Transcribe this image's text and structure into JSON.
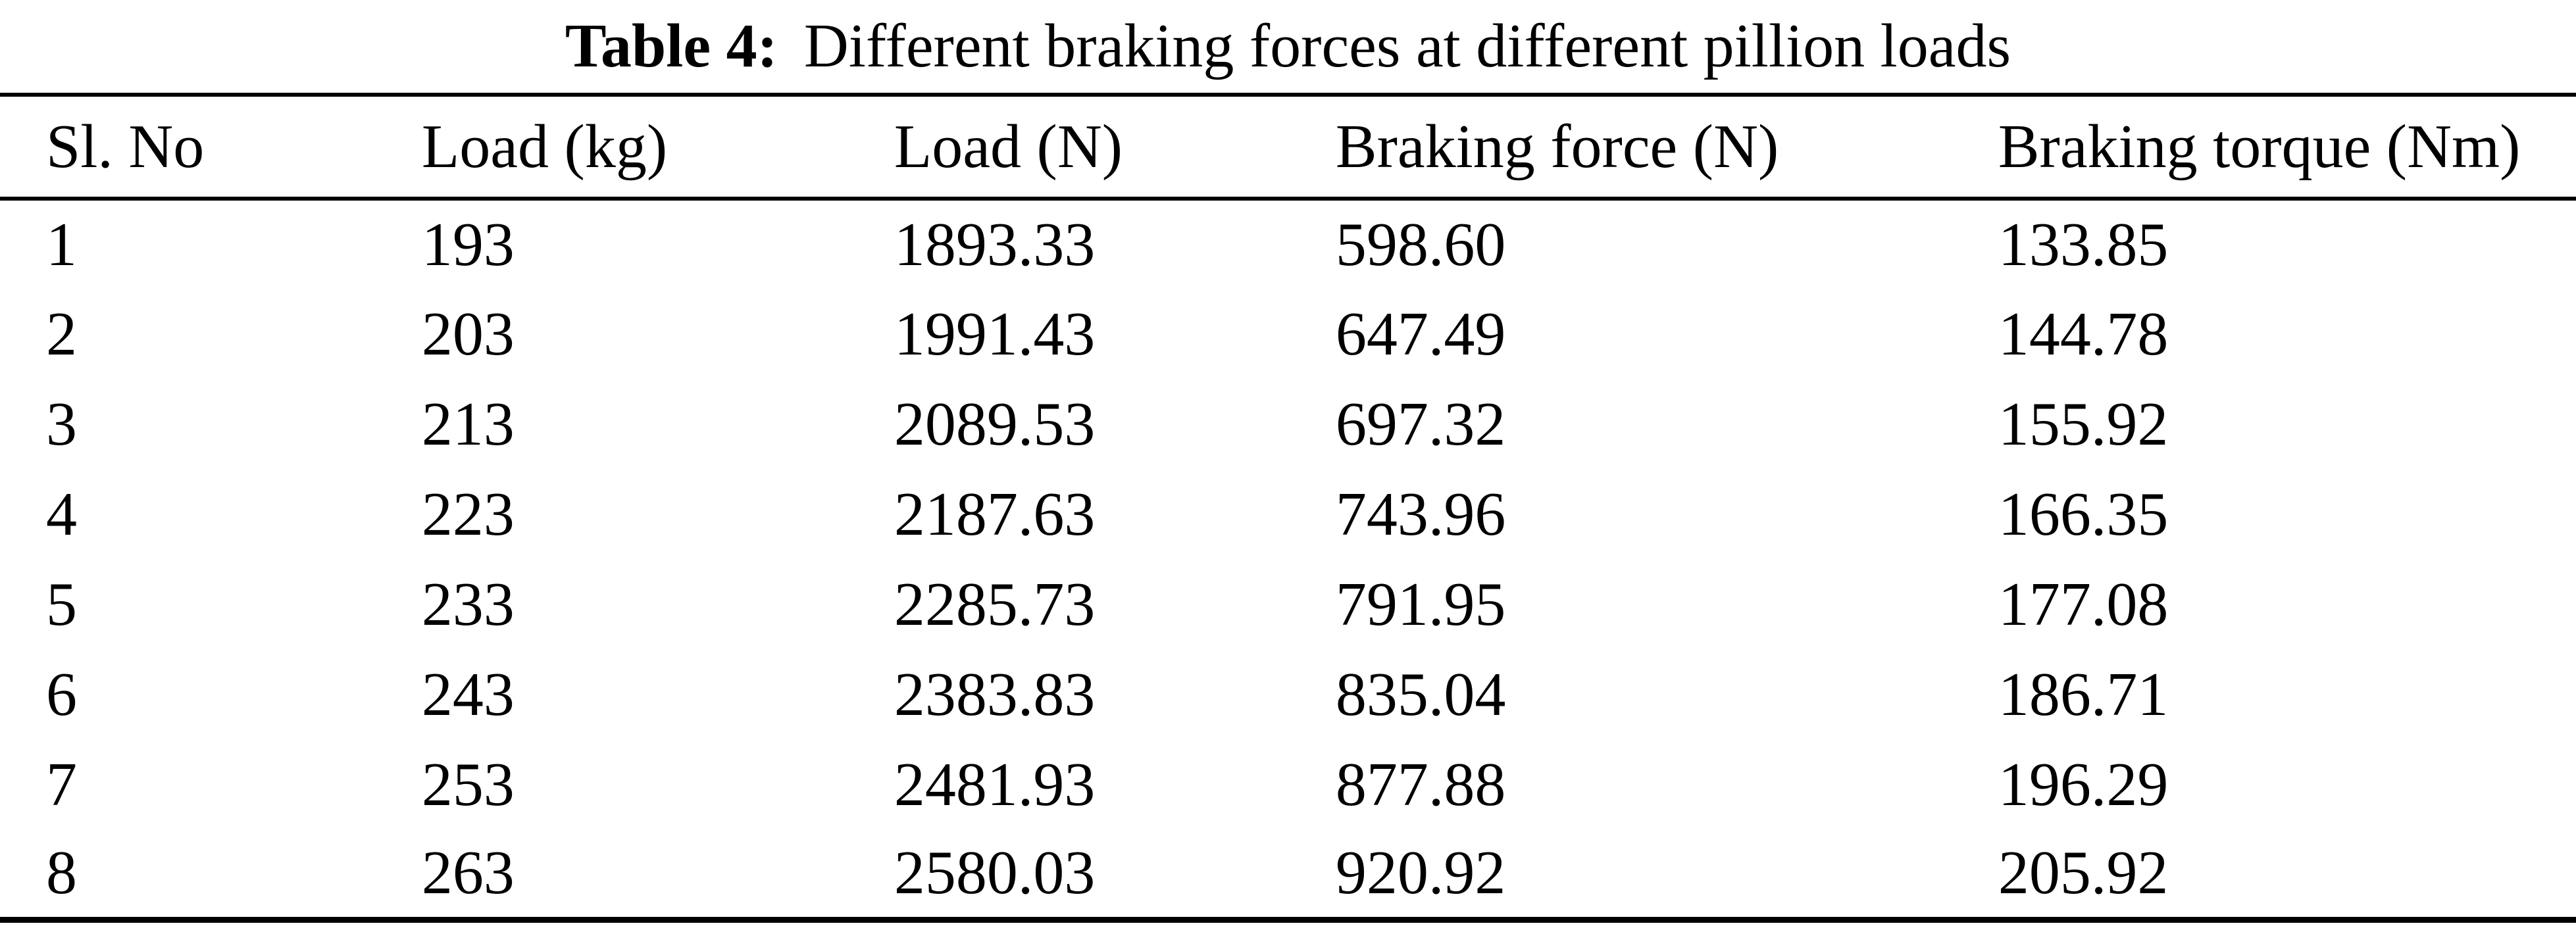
{
  "page": {
    "background_color": "#ffffff",
    "text_color": "#000000",
    "rule_color": "#000000"
  },
  "caption": {
    "label": "Table 4:",
    "text": "Different braking forces at different pillion loads"
  },
  "chart_data": {
    "type": "table",
    "title": "Table 4: Different braking forces at different pillion loads",
    "columns": [
      "Sl. No",
      "Load (kg)",
      "Load (N)",
      "Braking force (N)",
      "Braking torque (Nm)"
    ],
    "rows": [
      [
        "1",
        "193",
        "1893.33",
        "598.60",
        "133.85"
      ],
      [
        "2",
        "203",
        "1991.43",
        "647.49",
        "144.78"
      ],
      [
        "3",
        "213",
        "2089.53",
        "697.32",
        "155.92"
      ],
      [
        "4",
        "223",
        "2187.63",
        "743.96",
        "166.35"
      ],
      [
        "5",
        "233",
        "2285.73",
        "791.95",
        "177.08"
      ],
      [
        "6",
        "243",
        "2383.83",
        "835.04",
        "186.71"
      ],
      [
        "7",
        "253",
        "2481.93",
        "877.88",
        "196.29"
      ],
      [
        "8",
        "263",
        "2580.03",
        "920.92",
        "205.92"
      ]
    ]
  }
}
